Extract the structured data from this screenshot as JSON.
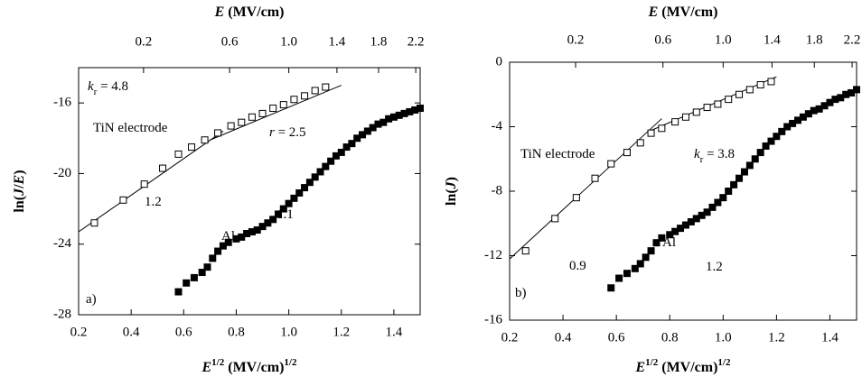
{
  "chart_data": [
    {
      "type": "scatter",
      "x2label": [
        {
          "text": "E",
          "style": "italic"
        },
        {
          "text": " (MV/cm)"
        }
      ],
      "xlabel": [
        {
          "text": "E",
          "style": "italic"
        },
        {
          "text": "1/2",
          "style": "sup"
        },
        {
          "text": " (MV/cm)"
        },
        {
          "text": "1/2",
          "style": "sup"
        }
      ],
      "ylabel": [
        {
          "text": "ln("
        },
        {
          "text": "J",
          "style": "italic"
        },
        {
          "text": "/"
        },
        {
          "text": "E",
          "style": "italic"
        },
        {
          "text": ")"
        }
      ],
      "xlim": [
        0.2,
        1.5
      ],
      "xticks": [
        0.2,
        0.4,
        0.6,
        0.8,
        {
          "value": 1,
          "label": "1.0"
        },
        1.2,
        1.4
      ],
      "x2scale": "sqrt",
      "x2ticks": [
        0.2,
        0.6,
        {
          "value": 1,
          "label": "1.0"
        },
        1.4,
        1.8,
        2.2
      ],
      "ylim": [
        -28,
        -14
      ],
      "yticks": [
        -28,
        -24,
        -20,
        -16
      ],
      "series": [
        {
          "marker": "open-square",
          "color": "#000000",
          "x": [
            0.26,
            0.37,
            0.45,
            0.52,
            0.58,
            0.63,
            0.68,
            0.73,
            0.78,
            0.82,
            0.86,
            0.9,
            0.94,
            0.98,
            1.02,
            1.06,
            1.1,
            1.14
          ],
          "values": [
            -22.8,
            -21.5,
            -20.6,
            -19.7,
            -18.9,
            -18.5,
            -18.1,
            -17.7,
            -17.3,
            -17.1,
            -16.8,
            -16.6,
            -16.3,
            -16.1,
            -15.8,
            -15.6,
            -15.3,
            -15.1
          ]
        },
        {
          "marker": "filled-square",
          "color": "#000000",
          "x": [
            0.58,
            0.61,
            0.64,
            0.67,
            0.69,
            0.71,
            0.73,
            0.75,
            0.77,
            0.8,
            0.82,
            0.84,
            0.86,
            0.88,
            0.9,
            0.92,
            0.94,
            0.96,
            0.98,
            1.0,
            1.02,
            1.04,
            1.06,
            1.08,
            1.1,
            1.12,
            1.14,
            1.16,
            1.18,
            1.2,
            1.22,
            1.24,
            1.26,
            1.28,
            1.3,
            1.32,
            1.34,
            1.36,
            1.38,
            1.4,
            1.42,
            1.44,
            1.46,
            1.48,
            1.5
          ],
          "values": [
            -26.7,
            -26.2,
            -25.9,
            -25.6,
            -25.3,
            -24.8,
            -24.4,
            -24.1,
            -23.9,
            -23.7,
            -23.6,
            -23.4,
            -23.3,
            -23.2,
            -23.0,
            -22.8,
            -22.6,
            -22.3,
            -22.0,
            -21.7,
            -21.4,
            -21.1,
            -20.8,
            -20.5,
            -20.2,
            -19.9,
            -19.6,
            -19.3,
            -19.0,
            -18.8,
            -18.5,
            -18.3,
            -18.0,
            -17.8,
            -17.6,
            -17.4,
            -17.2,
            -17.1,
            -16.9,
            -16.8,
            -16.7,
            -16.6,
            -16.5,
            -16.4,
            -16.3
          ]
        }
      ],
      "fits": [
        {
          "x": [
            0.2,
            0.75
          ],
          "values": [
            -23.3,
            -17.6
          ]
        },
        {
          "x": [
            0.7,
            1.2
          ],
          "values": [
            -18.1,
            -15.0
          ]
        }
      ],
      "annotations": [
        {
          "parts": [
            {
              "text": "k",
              "style": "italic"
            },
            {
              "text": "r",
              "style": "sub"
            },
            {
              "text": " = 4.8"
            }
          ]
        },
        {
          "parts": [
            {
              "text": "TiN electrode"
            }
          ]
        },
        {
          "parts": [
            {
              "text": "r",
              "style": "italic"
            },
            {
              "text": " = 2.5"
            }
          ]
        },
        {
          "parts": [
            {
              "text": "1.2"
            }
          ]
        },
        {
          "parts": [
            {
              "text": "Al"
            }
          ]
        },
        {
          "parts": [
            {
              "text": "1.1"
            }
          ]
        },
        {
          "parts": [
            {
              "text": "a)"
            }
          ]
        }
      ]
    },
    {
      "type": "scatter",
      "x2label": [
        {
          "text": "E",
          "style": "italic"
        },
        {
          "text": " (MV/cm)"
        }
      ],
      "xlabel": [
        {
          "text": "E",
          "style": "italic"
        },
        {
          "text": "1/2",
          "style": "sup"
        },
        {
          "text": " (MV/cm)"
        },
        {
          "text": "1/2",
          "style": "sup"
        }
      ],
      "ylabel": [
        {
          "text": "ln("
        },
        {
          "text": "J",
          "style": "italic"
        },
        {
          "text": ")"
        }
      ],
      "xlim": [
        0.2,
        1.5
      ],
      "xticks": [
        0.2,
        0.4,
        0.6,
        0.8,
        {
          "value": 1,
          "label": "1.0"
        },
        1.2,
        1.4
      ],
      "x2scale": "sqrt",
      "x2ticks": [
        0.2,
        0.6,
        {
          "value": 1,
          "label": "1.0"
        },
        1.4,
        1.8,
        2.2
      ],
      "ylim": [
        -16,
        0
      ],
      "yticks": [
        -16,
        -12,
        -8,
        -4,
        0
      ],
      "series": [
        {
          "marker": "open-square",
          "color": "#000000",
          "x": [
            0.26,
            0.37,
            0.45,
            0.52,
            0.58,
            0.64,
            0.69,
            0.73,
            0.77,
            0.82,
            0.86,
            0.9,
            0.94,
            0.98,
            1.02,
            1.06,
            1.1,
            1.14,
            1.18
          ],
          "values": [
            -11.7,
            -9.7,
            -8.4,
            -7.2,
            -6.3,
            -5.6,
            -5.0,
            -4.4,
            -4.1,
            -3.7,
            -3.4,
            -3.1,
            -2.8,
            -2.6,
            -2.3,
            -2.0,
            -1.7,
            -1.4,
            -1.2
          ]
        },
        {
          "marker": "filled-square",
          "color": "#000000",
          "x": [
            0.58,
            0.61,
            0.64,
            0.67,
            0.69,
            0.71,
            0.73,
            0.75,
            0.77,
            0.8,
            0.82,
            0.84,
            0.86,
            0.88,
            0.9,
            0.92,
            0.94,
            0.96,
            0.98,
            1.0,
            1.02,
            1.04,
            1.06,
            1.08,
            1.1,
            1.12,
            1.14,
            1.16,
            1.18,
            1.2,
            1.22,
            1.24,
            1.26,
            1.28,
            1.3,
            1.32,
            1.34,
            1.36,
            1.38,
            1.4,
            1.42,
            1.44,
            1.46,
            1.48,
            1.5
          ],
          "values": [
            -14.0,
            -13.4,
            -13.1,
            -12.8,
            -12.5,
            -12.1,
            -11.7,
            -11.2,
            -10.9,
            -10.7,
            -10.5,
            -10.3,
            -10.1,
            -9.9,
            -9.7,
            -9.5,
            -9.3,
            -9.0,
            -8.7,
            -8.4,
            -8.0,
            -7.6,
            -7.2,
            -6.8,
            -6.4,
            -6.0,
            -5.6,
            -5.2,
            -4.9,
            -4.6,
            -4.3,
            -4.0,
            -3.8,
            -3.6,
            -3.4,
            -3.2,
            -3.0,
            -2.9,
            -2.7,
            -2.5,
            -2.3,
            -2.2,
            -2.0,
            -1.9,
            -1.7
          ]
        }
      ],
      "fits": [
        {
          "x": [
            0.2,
            0.77
          ],
          "values": [
            -12.2,
            -3.5
          ]
        },
        {
          "x": [
            0.72,
            1.2
          ],
          "values": [
            -4.3,
            -0.9
          ]
        }
      ],
      "annotations": [
        {
          "parts": [
            {
              "text": "TiN electrode"
            }
          ]
        },
        {
          "parts": [
            {
              "text": "k",
              "style": "italic"
            },
            {
              "text": "r",
              "style": "sub"
            },
            {
              "text": " = 3.8"
            }
          ]
        },
        {
          "parts": [
            {
              "text": "0.9"
            }
          ]
        },
        {
          "parts": [
            {
              "text": "Al"
            }
          ]
        },
        {
          "parts": [
            {
              "text": "1.2"
            }
          ]
        },
        {
          "parts": [
            {
              "text": "b)"
            }
          ]
        }
      ]
    }
  ]
}
